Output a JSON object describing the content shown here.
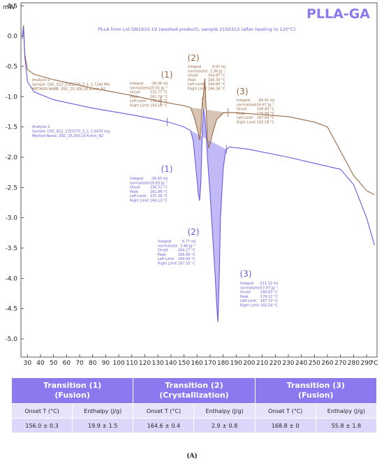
{
  "chart_data": {
    "type": "line",
    "title": "PLLA-GA",
    "subtitle": "PLLA from Lot GN1910-1V (washed product), sample 21S0313 (after heating to 120°C)",
    "ylabel": "mW",
    "xlabel": "°C",
    "xlim": [
      25,
      298
    ],
    "ylim": [
      -5.3,
      0.55
    ],
    "yticks": [
      "0.5",
      "0.0",
      "-0.5",
      "-1.0",
      "-1.5",
      "-2.0",
      "-2.5",
      "-3.0",
      "-3.5",
      "-4.0",
      "-4.5",
      "-5.0"
    ],
    "ytick_values": [
      0.5,
      0,
      -0.5,
      -1,
      -1.5,
      -2,
      -2.5,
      -3,
      -3.5,
      -4,
      -4.5,
      -5
    ],
    "xticks": [
      30,
      40,
      50,
      60,
      70,
      80,
      90,
      100,
      110,
      120,
      130,
      140,
      150,
      160,
      170,
      180,
      190,
      200,
      210,
      220,
      230,
      240,
      250,
      260,
      270,
      280,
      290
    ],
    "grid": false,
    "colors": {
      "analysis1": "#9b6a45",
      "analysis2": "#6a5ae0",
      "title": "#8b79f0",
      "fill1": "#c8ab95",
      "fill2": "#a79cf2"
    },
    "series": [
      {
        "name": "Analysis 1",
        "points": [
          [
            26,
            0.0
          ],
          [
            27,
            0.18
          ],
          [
            28,
            -0.3
          ],
          [
            30,
            -0.55
          ],
          [
            35,
            -0.63
          ],
          [
            50,
            -0.72
          ],
          [
            80,
            -0.86
          ],
          [
            110,
            -0.98
          ],
          [
            130,
            -1.07
          ],
          [
            140,
            -1.11
          ],
          [
            150,
            -1.15
          ],
          [
            155,
            -1.18
          ],
          [
            158,
            -1.35
          ],
          [
            161,
            -1.6
          ],
          [
            162,
            -1.72
          ],
          [
            163,
            -1.55
          ],
          [
            164,
            -1.1
          ],
          [
            165,
            -0.95
          ],
          [
            166,
            -0.7
          ],
          [
            167,
            -1.2
          ],
          [
            168,
            -1.7
          ],
          [
            169,
            -1.85
          ],
          [
            170,
            -1.78
          ],
          [
            172,
            -1.6
          ],
          [
            175,
            -1.38
          ],
          [
            180,
            -1.27
          ],
          [
            185,
            -1.26
          ],
          [
            200,
            -1.28
          ],
          [
            230,
            -1.33
          ],
          [
            250,
            -1.42
          ],
          [
            260,
            -1.5
          ],
          [
            270,
            -1.9
          ],
          [
            280,
            -2.3
          ],
          [
            290,
            -2.55
          ],
          [
            296,
            -2.62
          ]
        ]
      },
      {
        "name": "Analysis 2",
        "points": [
          [
            26,
            -0.05
          ],
          [
            27,
            0.15
          ],
          [
            28,
            -0.35
          ],
          [
            30,
            -0.75
          ],
          [
            35,
            -0.92
          ],
          [
            50,
            -1.05
          ],
          [
            80,
            -1.19
          ],
          [
            110,
            -1.3
          ],
          [
            130,
            -1.38
          ],
          [
            140,
            -1.43
          ],
          [
            150,
            -1.5
          ],
          [
            155,
            -1.56
          ],
          [
            157,
            -1.72
          ],
          [
            159,
            -2.15
          ],
          [
            161,
            -2.6
          ],
          [
            162,
            -2.72
          ],
          [
            163,
            -2.4
          ],
          [
            164,
            -1.6
          ],
          [
            165,
            -1.2
          ],
          [
            166,
            -1.35
          ],
          [
            167,
            -1.6
          ],
          [
            168,
            -2.0
          ],
          [
            170,
            -2.6
          ],
          [
            172,
            -3.3
          ],
          [
            174,
            -4.0
          ],
          [
            175,
            -4.4
          ],
          [
            176,
            -4.72
          ],
          [
            177,
            -4.0
          ],
          [
            178,
            -3.0
          ],
          [
            180,
            -2.2
          ],
          [
            182,
            -1.88
          ],
          [
            185,
            -1.83
          ],
          [
            200,
            -1.87
          ],
          [
            230,
            -2.0
          ],
          [
            250,
            -2.1
          ],
          [
            270,
            -2.2
          ],
          [
            280,
            -2.45
          ],
          [
            290,
            -3.0
          ],
          [
            296,
            -3.45
          ]
        ]
      }
    ],
    "annotations": {
      "analysis1_header": [
        "Analysis 1",
        "Sample: DSC_822_21E1570_3_2, 1.7240 MG",
        "METHOD NAME: DSC_25,300,10 K/min_N2"
      ],
      "analysis2_header": [
        "Analysis 2",
        "Sample: DSC_822_21E1570_3_2, 1.9470 mg",
        "Method Name: DSC_25,300,10 K/min_N2"
      ],
      "peak_labels": [
        "(1)",
        "(2)",
        "(3)"
      ],
      "a1_peak1": {
        "rows": [
          [
            "Integral",
            "-36.06 mJ"
          ],
          [
            "normalized",
            "-20.92 Jg⁻¹"
          ],
          [
            "Onset",
            "155.77 °C"
          ],
          [
            "Peak",
            "161.74 °C"
          ],
          [
            "Left Limit",
            "132.21 °C"
          ],
          [
            "Right Limit",
            "164.13 °C"
          ]
        ]
      },
      "a1_peak2": {
        "rows": [
          [
            "Integral",
            "4.07 mJ"
          ],
          [
            "normalized",
            "2.36 Jg⁻¹"
          ],
          [
            "Onset",
            "164.87 °C"
          ],
          [
            "Peak",
            "165.30 °C"
          ],
          [
            "Left Limit",
            "164.80 °C"
          ],
          [
            "Right Limit",
            "166.36 °C"
          ]
        ]
      },
      "a1_peak3": {
        "rows": [
          [
            "Integral",
            "-93.91 mJ"
          ],
          [
            "normalized",
            "-54.47 Jg⁻¹"
          ],
          [
            "Onset",
            "168.80 °C"
          ],
          [
            "Peak",
            "170.99 °C"
          ],
          [
            "Left Limit",
            "167.84 °C"
          ],
          [
            "Right Limit",
            "183.58 °C"
          ]
        ]
      },
      "a2_peak1": {
        "rows": [
          [
            "Integral",
            "-36.65 mJ"
          ],
          [
            "normalized",
            "-18.83 Jg⁻¹"
          ],
          [
            "Onset",
            "156.32 °C"
          ],
          [
            "Peak",
            "161.88 °C"
          ],
          [
            "Left Limit",
            "137.26 °C"
          ],
          [
            "Right Limit",
            "164.13 °C"
          ]
        ]
      },
      "a2_peak2": {
        "rows": [
          [
            "Integral",
            "6.77 mJ"
          ],
          [
            "normalized",
            "3.48 Jg⁻¹"
          ],
          [
            "Onset",
            "164.27 °C"
          ],
          [
            "Peak",
            "165.45 °C"
          ],
          [
            "Left Limit",
            "164.43 °C"
          ],
          [
            "Right Limit",
            "167.55 °C"
          ]
        ]
      },
      "a2_peak3": {
        "rows": [
          [
            "Integral",
            "-111.12 mJ"
          ],
          [
            "normalized",
            "-57.07 Jg⁻¹"
          ],
          [
            "Onset",
            "168.83 °C"
          ],
          [
            "Peak",
            "176.12 °C"
          ],
          [
            "Left Limit",
            "167.70 °C"
          ],
          [
            "Right Limit",
            "182.54 °C"
          ]
        ]
      }
    }
  },
  "table": {
    "headers": [
      {
        "line1": "Transition (1)",
        "line2": "(Fusion)"
      },
      {
        "line1": "Transition (2)",
        "line2": "(Crystallization)"
      },
      {
        "line1": "Transition (3)",
        "line2": "(Fusion)"
      }
    ],
    "subheaders": [
      "Onset T (°C)",
      "Enthalpy (J/g)",
      "Onset T (°C)",
      "Enthalpy (J/g)",
      "Onset T (°C)",
      "Enthalpy (J/g)"
    ],
    "values": [
      "156.0 ± 0.3",
      "19.9 ± 1.5",
      "164.6 ± 0.4",
      "2.9 ± 0.8",
      "168.8 ± 0",
      "55.8 ± 1.8"
    ]
  },
  "caption": "(A)"
}
